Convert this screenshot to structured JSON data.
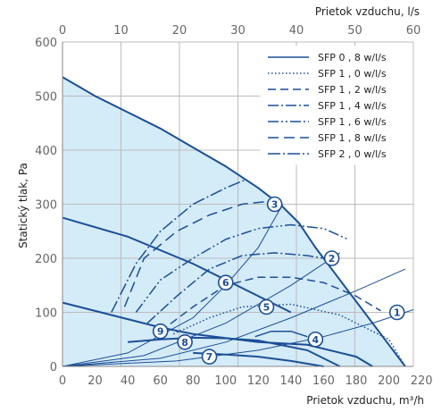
{
  "chart_data": {
    "type": "line",
    "xlabel_bottom": "Prietok vzduchu, m³/h",
    "xlabel_top": "Prietok vzduchu, l/s",
    "ylabel": "Statický tlak, Pa",
    "xlim": [
      0,
      215
    ],
    "ylim": [
      0,
      600
    ],
    "xticks_bottom": [
      "0",
      "20",
      "40",
      "60",
      "80",
      "100",
      "120",
      "140",
      "160",
      "180",
      "200",
      "220"
    ],
    "xticks_top": [
      "0",
      "10",
      "20",
      "30",
      "40",
      "50",
      "60"
    ],
    "yticks": [
      0,
      100,
      200,
      300,
      400,
      500,
      600
    ],
    "grid": true,
    "legend_position": "top-right",
    "colors": {
      "line": "#1c4f95",
      "fill": "#d4ebf8",
      "grid": "#bcbcbc",
      "marker_fill": "#ffffff"
    },
    "envelope": {
      "x": [
        0,
        20,
        40,
        60,
        80,
        100,
        120,
        135,
        145,
        155,
        170,
        185,
        200,
        210
      ],
      "y": [
        535,
        500,
        470,
        440,
        405,
        370,
        330,
        295,
        265,
        220,
        160,
        100,
        40,
        0
      ]
    },
    "series": [
      {
        "name": "SFP 0 , 8 w/l/s",
        "dash": "",
        "x": [
          118,
          128,
          140,
          150
        ],
        "y": [
          55,
          65,
          65,
          55
        ]
      },
      {
        "name": "SFP 1 , 0 w/l/s",
        "dash": "1.5,2.5",
        "x": [
          68,
          90,
          110,
          140,
          170,
          200,
          210
        ],
        "y": [
          60,
          90,
          110,
          115,
          95,
          50,
          0
        ]
      },
      {
        "name": "SFP 1 , 2 w/l/s",
        "dash": "9,5",
        "x": [
          60,
          80,
          100,
          120,
          140,
          160,
          180,
          195
        ],
        "y": [
          65,
          110,
          150,
          165,
          165,
          155,
          130,
          103
        ]
      },
      {
        "name": "SFP 1 , 4 w/l/s",
        "dash": "12,3,2,3",
        "x": [
          52,
          70,
          90,
          110,
          130,
          150,
          160
        ],
        "y": [
          80,
          130,
          180,
          205,
          210,
          205,
          200
        ]
      },
      {
        "name": "SFP 1 , 6 w/l/s",
        "dash": "12,3,2,3,2,3",
        "x": [
          45,
          60,
          80,
          100,
          120,
          140,
          160,
          175
        ],
        "y": [
          100,
          160,
          200,
          235,
          255,
          262,
          255,
          235
        ]
      },
      {
        "name": "SFP 1 , 8 w/l/s",
        "dash": "12,6",
        "x": [
          38,
          50,
          70,
          90,
          110,
          125,
          135
        ],
        "y": [
          110,
          200,
          250,
          280,
          300,
          305,
          300
        ]
      },
      {
        "name": "SFP 2 , 0 w/l/s",
        "dash": "14,3,2,3",
        "x": [
          30,
          45,
          60,
          80,
          100,
          112
        ],
        "y": [
          100,
          190,
          250,
          300,
          330,
          345
        ]
      }
    ],
    "system_curves": [
      {
        "x": [
          0,
          40,
          80,
          100,
          120,
          135
        ],
        "y": [
          0,
          25,
          90,
          150,
          220,
          300
        ]
      },
      {
        "x": [
          0,
          50,
          100,
          140,
          170
        ],
        "y": [
          0,
          20,
          80,
          150,
          210
        ]
      },
      {
        "x": [
          0,
          60,
          100,
          140,
          180,
          210
        ],
        "y": [
          0,
          15,
          45,
          90,
          140,
          180
        ]
      },
      {
        "x": [
          0,
          70,
          120,
          160,
          190,
          215
        ],
        "y": [
          0,
          10,
          30,
          55,
          80,
          105
        ]
      }
    ],
    "fan_curves": [
      {
        "x": [
          0,
          40,
          80,
          100,
          140
        ],
        "y": [
          275,
          240,
          190,
          160,
          100
        ]
      },
      {
        "x": [
          0,
          30,
          60,
          80,
          120,
          150,
          180,
          190
        ],
        "y": [
          118,
          95,
          72,
          60,
          45,
          40,
          18,
          0
        ]
      },
      {
        "x": [
          40,
          60,
          80,
          100,
          120,
          150,
          170
        ],
        "y": [
          45,
          50,
          53,
          52,
          48,
          30,
          0
        ]
      },
      {
        "x": [
          80,
          100,
          120,
          140,
          160
        ],
        "y": [
          25,
          22,
          18,
          10,
          0
        ]
      }
    ],
    "points": [
      {
        "label": "1",
        "x": 205,
        "y": 100
      },
      {
        "label": "2",
        "x": 165,
        "y": 200
      },
      {
        "label": "3",
        "x": 130,
        "y": 300
      },
      {
        "label": "4",
        "x": 155,
        "y": 50
      },
      {
        "label": "5",
        "x": 125,
        "y": 110
      },
      {
        "label": "6",
        "x": 100,
        "y": 155
      },
      {
        "label": "7",
        "x": 90,
        "y": 18
      },
      {
        "label": "8",
        "x": 75,
        "y": 45
      },
      {
        "label": "9",
        "x": 60,
        "y": 65
      }
    ]
  }
}
